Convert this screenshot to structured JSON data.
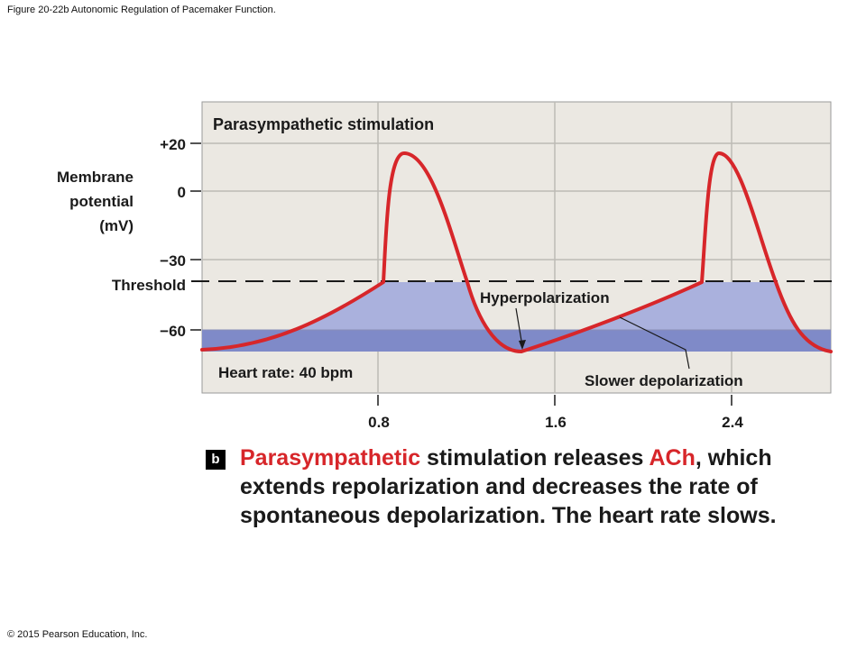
{
  "figure_title": "Figure 20-22b Autonomic Regulation of Pacemaker Function.",
  "copyright": "© 2015 Pearson Education, Inc.",
  "panel": {
    "title": "Parasympathetic stimulation",
    "heart_rate": "Heart rate: 40 bpm",
    "hyperpolarization_label": "Hyperpolarization",
    "slower_depolarization_label": "Slower depolarization"
  },
  "y_axis": {
    "label_line1": "Membrane",
    "label_line2": "potential",
    "label_line3": "(mV)",
    "ticks": [
      {
        "label": "+20",
        "value": 20
      },
      {
        "label": "0",
        "value": 0
      },
      {
        "label": "−30",
        "value": -30
      },
      {
        "label": "−60",
        "value": -60
      }
    ],
    "threshold_label": "Threshold",
    "threshold_value": -40
  },
  "x_axis": {
    "ticks": [
      {
        "label": "0.8",
        "value": 0.8
      },
      {
        "label": "1.6",
        "value": 1.6
      },
      {
        "label": "2.4",
        "value": 2.4
      }
    ]
  },
  "caption": {
    "badge": "b",
    "part1": "Parasympathetic",
    "part2": " stimulation releases ",
    "part3": "ACh",
    "part4": ", which extends repolarization and decreases the rate of spontaneous depolarization. The heart rate slows."
  },
  "colors": {
    "trace": "#d7262a",
    "panel_bg": "#ebe8e2",
    "fill_light": "#aab1dd",
    "fill_dark": "#7f8ac8"
  }
}
